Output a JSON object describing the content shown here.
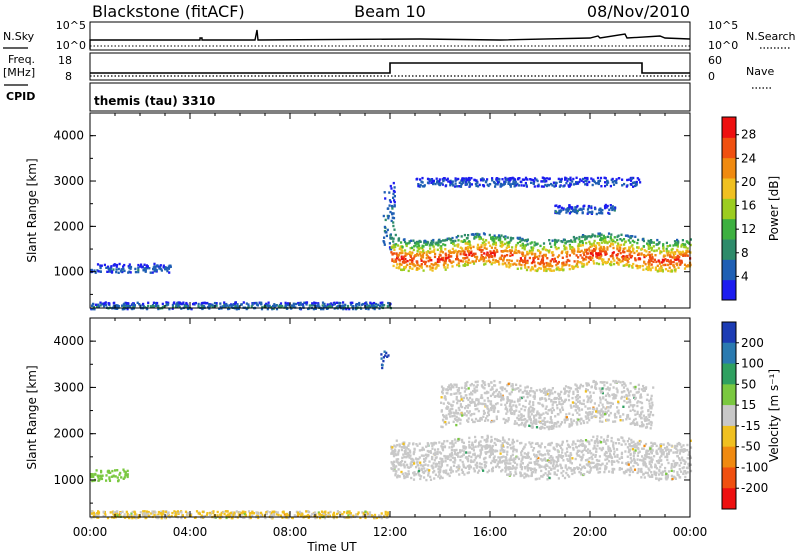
{
  "header": {
    "station": "Blackstone (fitACF)",
    "beam": "Beam 10",
    "date": "08/Nov/2010"
  },
  "aux_labels": {
    "nsky": "N.Sky",
    "nsearch": "N.Search",
    "freq": "Freq.",
    "freq_unit": "[MHz]",
    "nave": "Nave",
    "cpid": "CPID",
    "cpid_value": "themis (tau) 3310",
    "nsky_ticks": [
      "10^5",
      "10^0"
    ],
    "nsearch_ticks": [
      "10^5",
      "10^0"
    ],
    "freq_ticks": [
      "18",
      "8"
    ],
    "nave_ticks": [
      "60",
      "0"
    ]
  },
  "chart_data": [
    {
      "type": "heatmap",
      "panel": "power",
      "ylabel": "Slant Range [km]",
      "xlabel": "",
      "ylim": [
        200,
        4500
      ],
      "yticks": [
        1000,
        2000,
        3000,
        4000
      ],
      "colorbar": {
        "label": "Power [dB]",
        "ticks": [
          4,
          8,
          12,
          16,
          20,
          24,
          28
        ],
        "range": [
          0,
          31
        ],
        "colors": [
          "#1c1cf0",
          "#1f5fb4",
          "#2e8b6a",
          "#3db040",
          "#9ccd20",
          "#f0c020",
          "#f08a10",
          "#f05010",
          "#ee1010"
        ]
      },
      "features": [
        {
          "t_start": 0.0,
          "t_end": 3.2,
          "range_low": 1000,
          "range_high": 1200,
          "power_db": 6
        },
        {
          "t_start": 0.0,
          "t_end": 12.0,
          "range_low": 200,
          "range_high": 350,
          "power_db": 8
        },
        {
          "t_start": 11.7,
          "t_end": 12.2,
          "range_low": 1500,
          "range_high": 3000,
          "power_db": 8
        },
        {
          "t_start": 12.0,
          "t_end": 24.0,
          "range_low": 1100,
          "range_high": 1800,
          "power_db": 28
        },
        {
          "t_start": 18.5,
          "t_end": 21.0,
          "range_low": 2300,
          "range_high": 2500,
          "power_db": 6
        },
        {
          "t_start": 13.0,
          "t_end": 22.0,
          "range_low": 2900,
          "range_high": 3100,
          "power_db": 5
        }
      ]
    },
    {
      "type": "heatmap",
      "panel": "velocity",
      "ylabel": "Slant Range [km]",
      "xlabel": "Time UT",
      "ylim": [
        200,
        4500
      ],
      "yticks": [
        1000,
        2000,
        3000,
        4000
      ],
      "xticks": [
        "00:00",
        "04:00",
        "08:00",
        "12:00",
        "16:00",
        "20:00",
        "00:00"
      ],
      "colorbar": {
        "label": "Velocity [m s⁻¹]",
        "ticks": [
          200,
          100,
          50,
          15,
          -15,
          -50,
          -100,
          -200
        ],
        "range": [
          -250,
          250
        ],
        "colors": [
          "#1c3cb4",
          "#2a7ab0",
          "#2fa060",
          "#7ac840",
          "#c8c8c8",
          "#f0c020",
          "#f08a10",
          "#f05010",
          "#ee1010"
        ]
      },
      "features": [
        {
          "t_start": 0.0,
          "t_end": 1.5,
          "range_low": 1000,
          "range_high": 1250,
          "velocity": 40
        },
        {
          "t_start": 0.0,
          "t_end": 12.0,
          "range_low": 200,
          "range_high": 350,
          "velocity": -30
        },
        {
          "t_start": 12.0,
          "t_end": 24.0,
          "range_low": 1100,
          "range_high": 1900,
          "velocity": 0
        },
        {
          "t_start": 11.6,
          "t_end": 11.9,
          "range_low": 3400,
          "range_high": 3800,
          "velocity": 200
        },
        {
          "t_start": 14.0,
          "t_end": 22.5,
          "range_low": 2200,
          "range_high": 3100,
          "velocity": 0
        }
      ]
    }
  ]
}
